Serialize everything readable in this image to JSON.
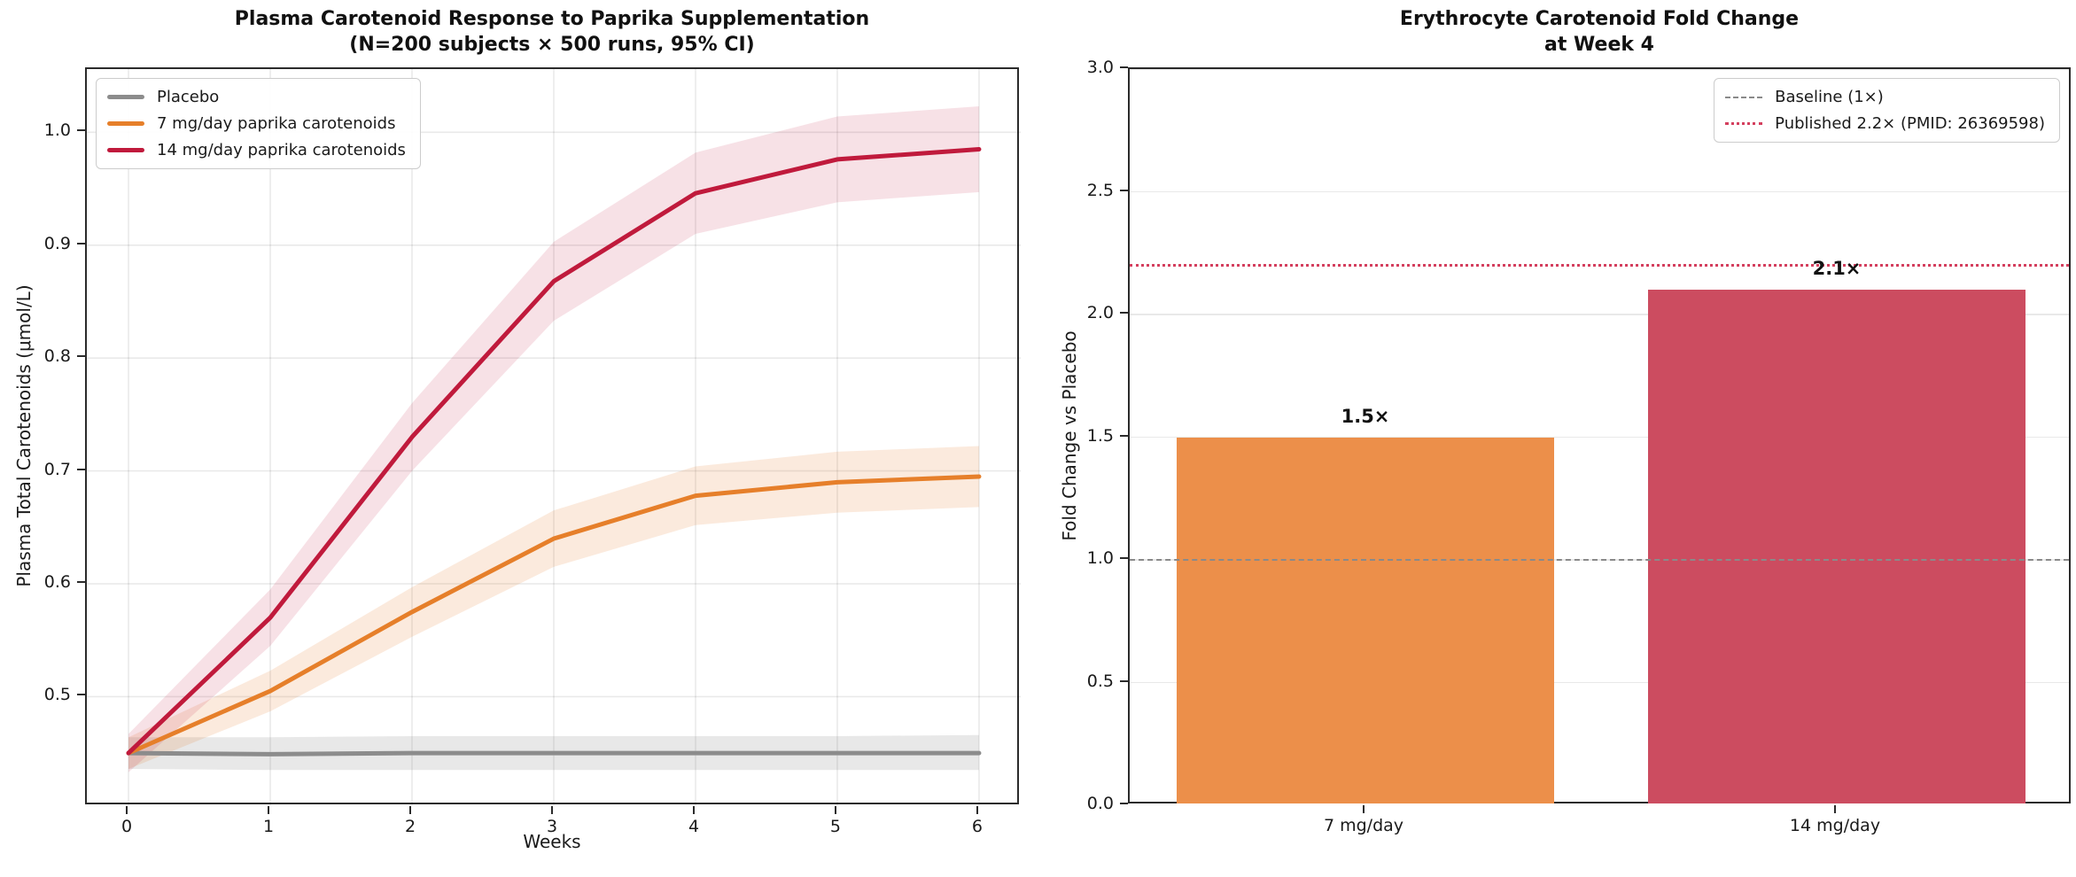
{
  "chart_data": [
    {
      "type": "line",
      "title": "Plasma Carotenoid Response to Paprika Supplementation",
      "subtitle": "(N=200 subjects × 500 runs, 95% CI)",
      "xlabel": "Weeks",
      "ylabel": "Plasma Total Carotenoids (μmol/L)",
      "x": [
        0,
        1,
        2,
        3,
        4,
        5,
        6
      ],
      "xticks": [
        0,
        1,
        2,
        3,
        4,
        5,
        6
      ],
      "yticks": [
        0.5,
        0.6,
        0.7,
        0.8,
        0.9,
        1.0
      ],
      "xlim": [
        -0.294,
        6.294
      ],
      "ylim": [
        0.403,
        1.056
      ],
      "grid": true,
      "legend_position": "upper left",
      "series": [
        {
          "name": "Placebo",
          "color": "#8c8c8c",
          "band_color": "rgba(140,140,140,0.20)",
          "values": [
            0.45,
            0.449,
            0.45,
            0.45,
            0.45,
            0.45,
            0.45
          ],
          "ci_low": [
            0.436,
            0.435,
            0.435,
            0.435,
            0.435,
            0.435,
            0.435
          ],
          "ci_high": [
            0.464,
            0.464,
            0.465,
            0.465,
            0.465,
            0.465,
            0.466
          ]
        },
        {
          "name": "7 mg/day paprika carotenoids",
          "color": "#e67f2a",
          "band_color": "rgba(230,127,42,0.16)",
          "values": [
            0.45,
            0.505,
            0.575,
            0.64,
            0.678,
            0.69,
            0.695
          ],
          "ci_low": [
            0.436,
            0.487,
            0.553,
            0.615,
            0.652,
            0.663,
            0.668
          ],
          "ci_high": [
            0.464,
            0.523,
            0.597,
            0.665,
            0.704,
            0.717,
            0.722
          ]
        },
        {
          "name": "14 mg/day paprika carotenoids",
          "color": "#c01a3c",
          "band_color": "rgba(192,26,60,0.13)",
          "values": [
            0.45,
            0.57,
            0.73,
            0.868,
            0.946,
            0.976,
            0.985
          ],
          "ci_low": [
            0.433,
            0.545,
            0.7,
            0.833,
            0.91,
            0.938,
            0.947
          ],
          "ci_high": [
            0.467,
            0.595,
            0.76,
            0.903,
            0.982,
            1.014,
            1.023
          ]
        }
      ]
    },
    {
      "type": "bar",
      "title": "Erythrocyte Carotenoid Fold Change",
      "subtitle": "at Week 4",
      "ylabel": "Fold Change vs Placebo",
      "categories": [
        "7 mg/day",
        "14 mg/day"
      ],
      "values": [
        1.5,
        2.1
      ],
      "bar_labels": [
        "1.5×",
        "2.1×"
      ],
      "bar_colors": [
        "#ec8f4a",
        "#cc4c60"
      ],
      "yticks": [
        0.0,
        0.5,
        1.0,
        1.5,
        2.0,
        2.5,
        3.0
      ],
      "ylim": [
        0,
        3
      ],
      "grid": true,
      "legend_position": "upper right",
      "baseline": {
        "value": 1.0,
        "label": "Baseline (1×)",
        "style": "dashed",
        "color": "#8a8a8a"
      },
      "reference": {
        "value": 2.2,
        "label": "Published 2.2× (PMID: 26369598)",
        "style": "dotted",
        "color": "#d43f5e"
      }
    }
  ]
}
